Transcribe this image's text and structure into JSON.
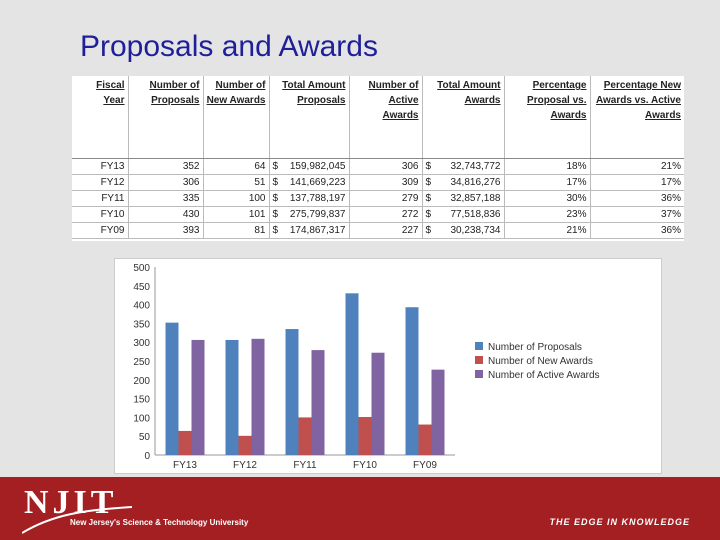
{
  "title": "Proposals and Awards",
  "table": {
    "headers": [
      "Fiscal Year",
      "Number of Proposals",
      "Number of New Awards",
      "Total Amount Proposals",
      "Number of Active Awards",
      "Total Amount Awards",
      "Percentage Proposal vs. Awards",
      "Percentage New Awards vs. Active Awards"
    ],
    "rows": [
      [
        "FY13",
        "352",
        "64",
        "159,982,045",
        "306",
        "32,743,772",
        "18%",
        "21%"
      ],
      [
        "FY12",
        "306",
        "51",
        "141,669,223",
        "309",
        "34,816,276",
        "17%",
        "17%"
      ],
      [
        "FY11",
        "335",
        "100",
        "137,788,197",
        "279",
        "32,857,188",
        "30%",
        "36%"
      ],
      [
        "FY10",
        "430",
        "101",
        "275,799,837",
        "272",
        "77,518,836",
        "23%",
        "37%"
      ],
      [
        "FY09",
        "393",
        "81",
        "174,867,317",
        "227",
        "30,238,734",
        "21%",
        "36%"
      ]
    ],
    "currency_symbol": "$"
  },
  "chart_data": {
    "type": "bar",
    "categories": [
      "FY13",
      "FY12",
      "FY11",
      "FY10",
      "FY09"
    ],
    "series": [
      {
        "name": "Number of Proposals",
        "values": [
          352,
          306,
          335,
          430,
          393
        ],
        "color": "#4f81bd"
      },
      {
        "name": "Number of New Awards",
        "values": [
          64,
          51,
          100,
          101,
          81
        ],
        "color": "#c0504d"
      },
      {
        "name": "Number of Active Awards",
        "values": [
          306,
          309,
          279,
          272,
          227
        ],
        "color": "#8064a2"
      }
    ],
    "yticks": [
      "0",
      "50",
      "100",
      "150",
      "200",
      "250",
      "300",
      "350",
      "400",
      "450",
      "500"
    ],
    "ylim": [
      0,
      500
    ],
    "legend": "right",
    "grid": false
  },
  "footer": {
    "logo": "NJIT",
    "subtitle": "New Jersey's Science & Technology University",
    "tagline": "THE EDGE IN KNOWLEDGE",
    "color": "#a31f22"
  }
}
